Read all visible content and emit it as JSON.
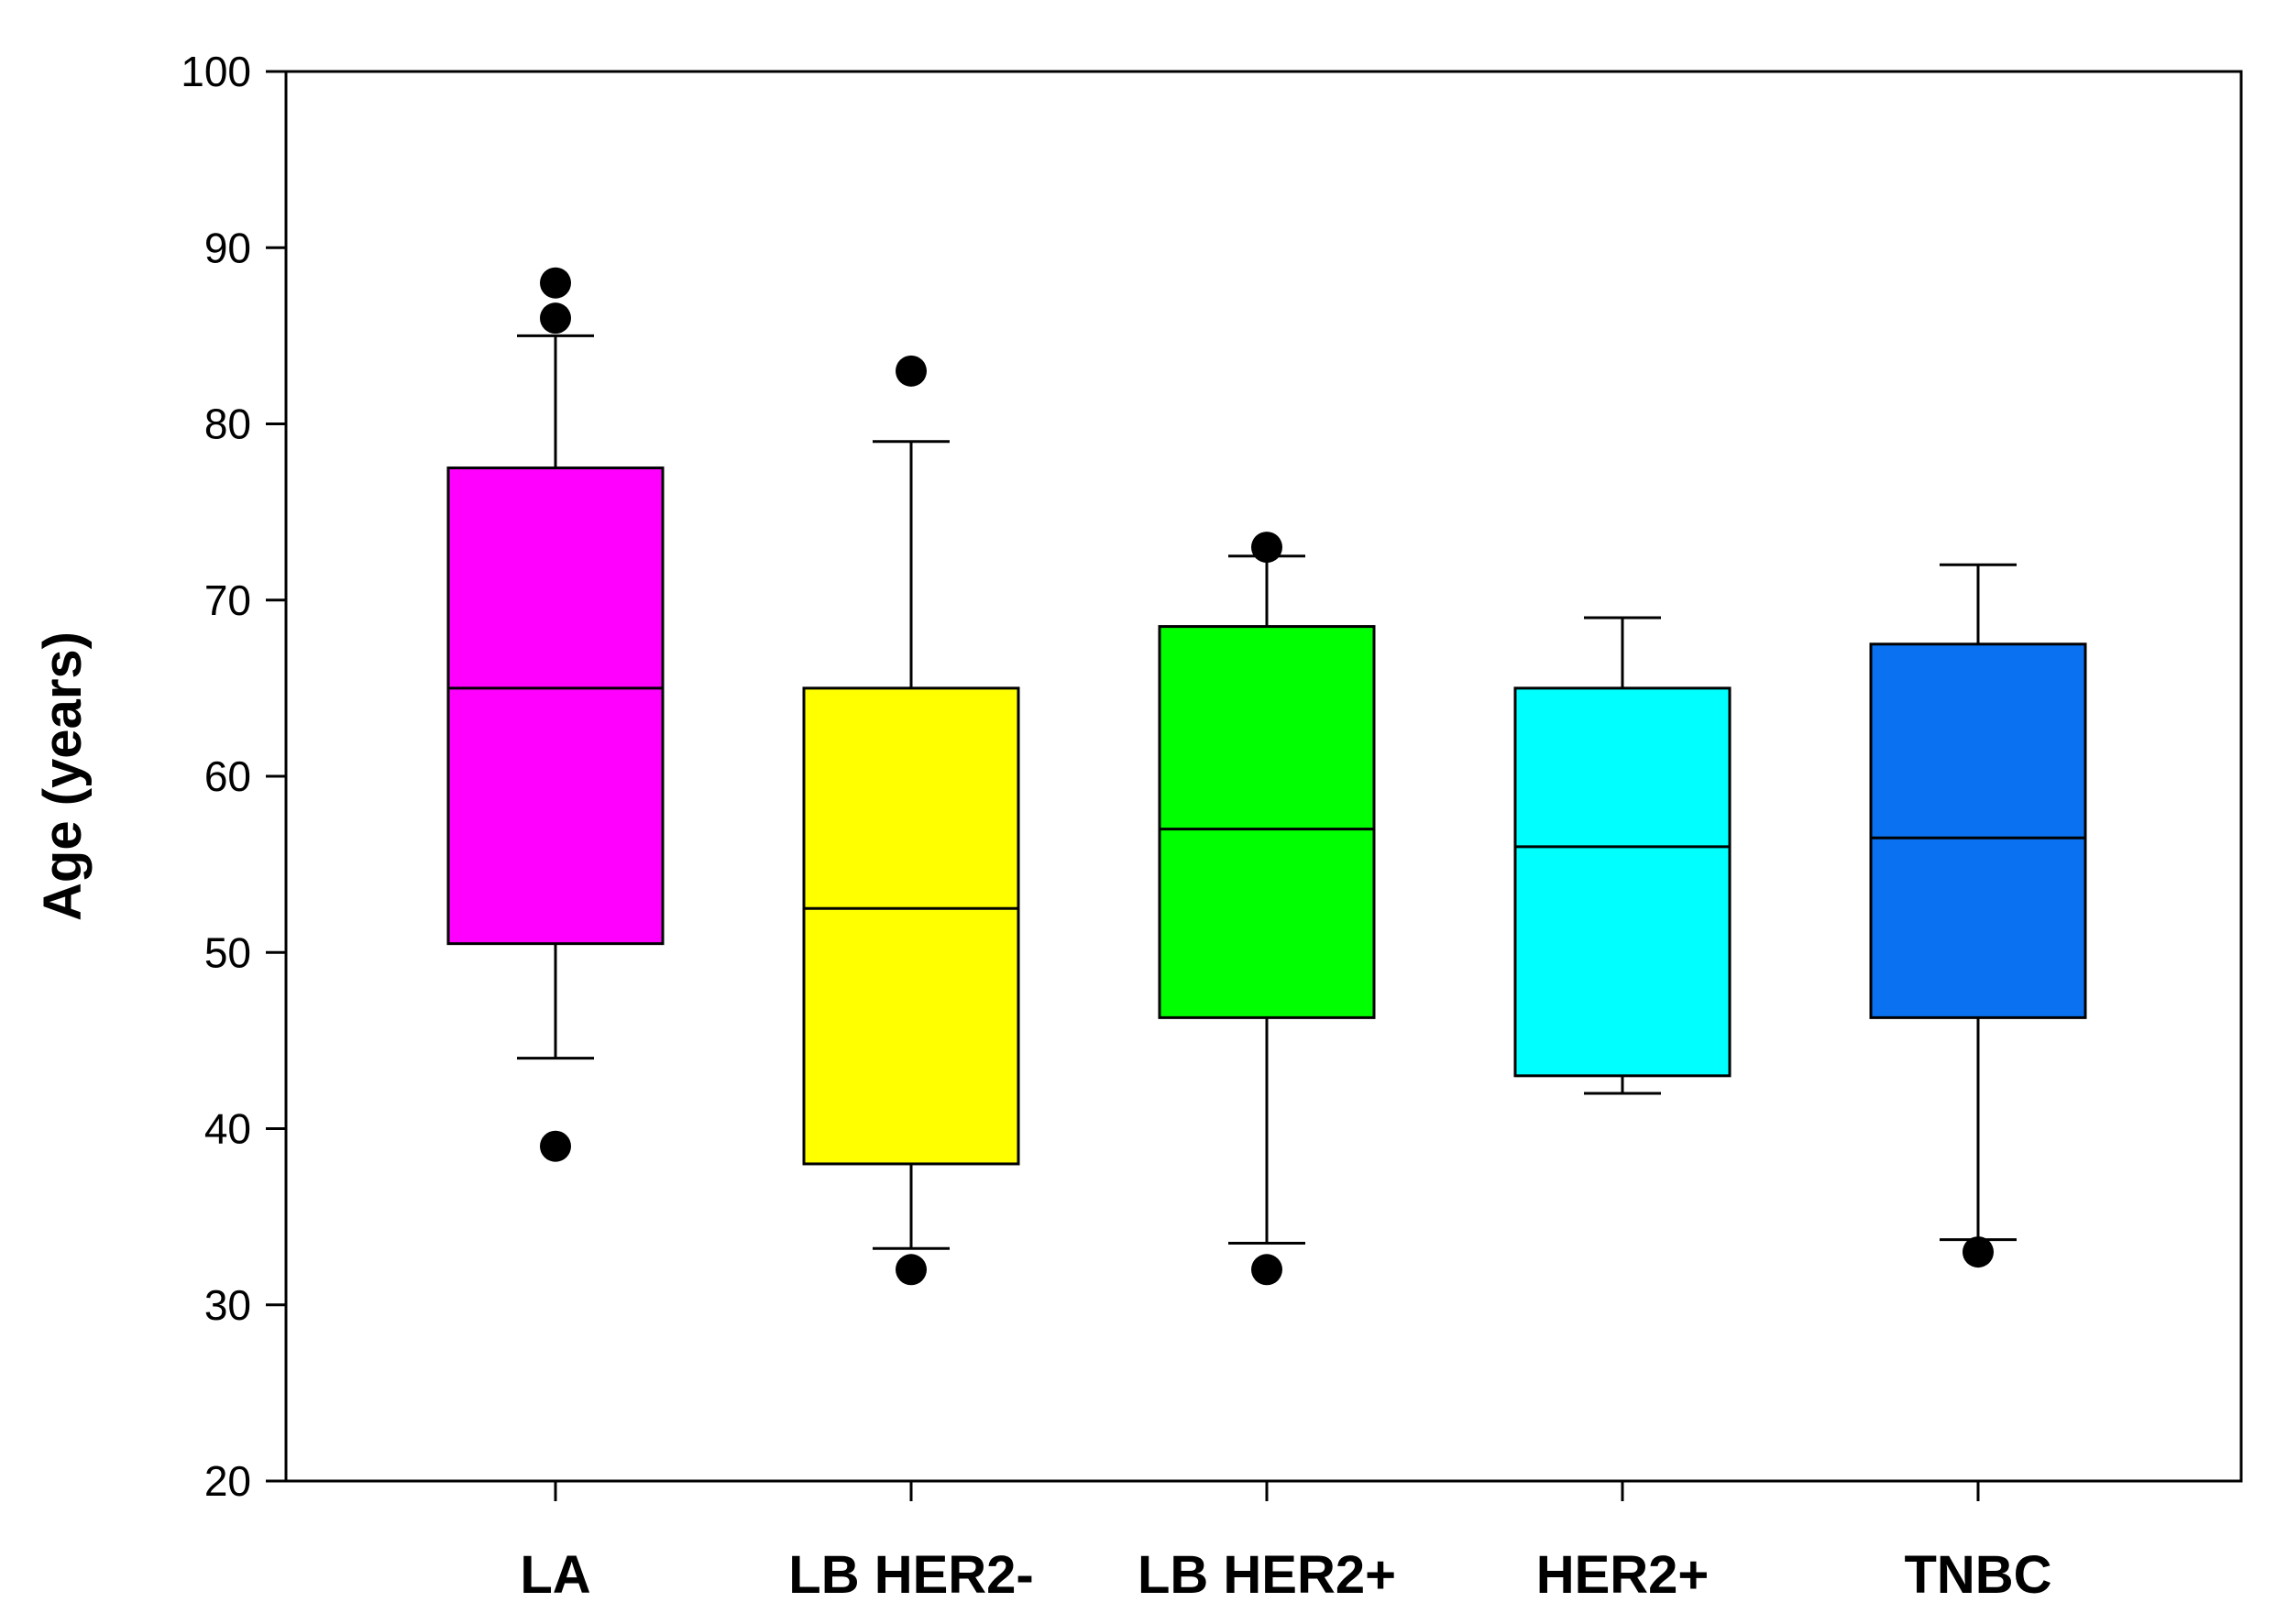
{
  "chart_data": {
    "type": "box",
    "title": "",
    "xlabel": "",
    "ylabel": "Age (years)",
    "ylim": [
      20,
      100
    ],
    "yticks": [
      20,
      30,
      40,
      50,
      60,
      70,
      80,
      90,
      100
    ],
    "grid": false,
    "legend": "none",
    "categories": [
      "LA",
      "LB HER2-",
      "LB HER2+",
      "HER2+",
      "TNBC"
    ],
    "boxes": [
      {
        "category": "LA",
        "color": "#ff00ff",
        "whisker_low": 44,
        "q1": 50.5,
        "median": 65,
        "q3": 77.5,
        "whisker_high": 85,
        "outliers": [
          39,
          86,
          88
        ]
      },
      {
        "category": "LB HER2-",
        "color": "#ffff00",
        "whisker_low": 33.2,
        "q1": 38,
        "median": 52.5,
        "q3": 65,
        "whisker_high": 79,
        "outliers": [
          32,
          83
        ]
      },
      {
        "category": "LB HER2+",
        "color": "#00ff00",
        "whisker_low": 33.5,
        "q1": 46.3,
        "median": 57,
        "q3": 68.5,
        "whisker_high": 72.5,
        "outliers": [
          32,
          73
        ]
      },
      {
        "category": "HER2+",
        "color": "#00ffff",
        "whisker_low": 42,
        "q1": 43,
        "median": 56,
        "q3": 65,
        "whisker_high": 69,
        "outliers": []
      },
      {
        "category": "TNBC",
        "color": "#0a72f0",
        "whisker_low": 33.7,
        "q1": 46.3,
        "median": 56.5,
        "q3": 67.5,
        "whisker_high": 72,
        "outliers": [
          33
        ]
      }
    ]
  }
}
